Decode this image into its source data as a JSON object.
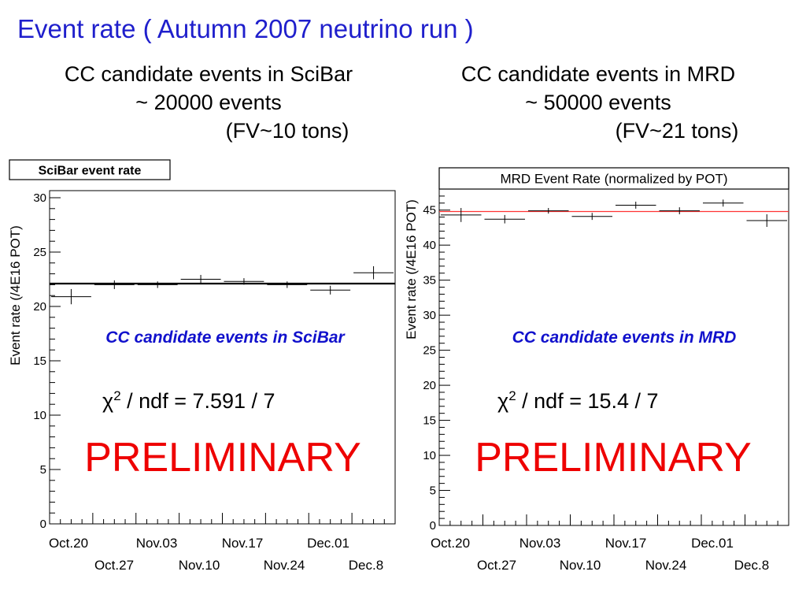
{
  "slide": {
    "title": "Event rate ( Autumn 2007 neutrino run )"
  },
  "left_heading": {
    "line1": "CC candidate events in SciBar",
    "line2": "~ 20000 events",
    "line3": "(FV~10 tons)"
  },
  "right_heading": {
    "line1": "CC candidate events in MRD",
    "line2": "~ 50000 events",
    "line3": "(FV~21 tons)"
  },
  "chart_data": [
    {
      "type": "scatter",
      "title": "SciBar event rate",
      "ylabel": "Event rate (/4E16 POT)",
      "ylim": [
        0,
        30
      ],
      "yticks": [
        "0",
        "5",
        "10",
        "15",
        "20",
        "25",
        "30"
      ],
      "x_labels_row1": [
        "Oct.20",
        "Nov.03",
        "Nov.17",
        "Dec.01"
      ],
      "x_labels_row2": [
        "Oct.27",
        "Nov.10",
        "Nov.24",
        "Dec.8"
      ],
      "fit_value": 22.1,
      "fit_color": "#000000",
      "bins": 8,
      "values": [
        20.9,
        22.0,
        22.0,
        22.5,
        22.3,
        22.0,
        21.5,
        23.1
      ],
      "errors": [
        0.7,
        0.4,
        0.3,
        0.4,
        0.3,
        0.3,
        0.4,
        0.6
      ],
      "annotation": "CC candidate events in SciBar",
      "chi2_symbol": "χ",
      "chi2_exp": "2",
      "chi2_text": " / ndf = 7.591 / 7",
      "stamp": "PRELIMINARY"
    },
    {
      "type": "scatter",
      "title": "MRD Event Rate (normalized by POT)",
      "ylabel": "Event rate (/4E16 POT)",
      "ylim": [
        0,
        48
      ],
      "yticks": [
        "0",
        "5",
        "10",
        "15",
        "20",
        "25",
        "30",
        "35",
        "40",
        "45"
      ],
      "x_labels_row1": [
        "Oct.20",
        "Nov.03",
        "Nov.17",
        "Dec.01"
      ],
      "x_labels_row2": [
        "Oct.27",
        "Nov.10",
        "Nov.24",
        "Dec.8"
      ],
      "fit_value": 44.8,
      "fit_color": "#ff3333",
      "bins": 8,
      "values": [
        44.3,
        43.7,
        44.9,
        44.1,
        45.7,
        44.9,
        46.0,
        43.5
      ],
      "errors": [
        1.0,
        0.6,
        0.4,
        0.5,
        0.5,
        0.5,
        0.5,
        0.9
      ],
      "annotation": "CC candidate events in MRD",
      "chi2_symbol": "χ",
      "chi2_exp": "2",
      "chi2_text": " / ndf = 15.4 / 7",
      "stamp": "PRELIMINARY"
    }
  ],
  "colors": {
    "title_blue": "#1f1fcc",
    "annotation_blue": "#1111cc",
    "stamp_red": "#ee0000"
  }
}
